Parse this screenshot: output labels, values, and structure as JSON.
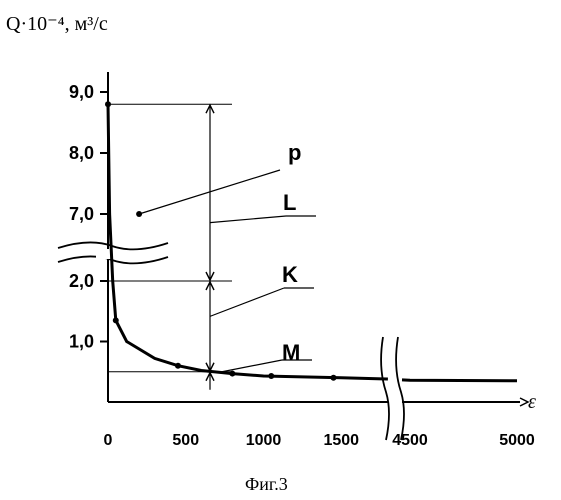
{
  "chart_data": {
    "type": "line",
    "title": "",
    "ylabel": "Q·10⁻⁴, м³/с",
    "xlabel": "ε",
    "caption": "Фиг.3",
    "y_tick_labels": [
      "9,0",
      "8,0",
      "7,0",
      "2,0",
      "1,0"
    ],
    "x_tick_labels": [
      "0",
      "500",
      "1000",
      "1500",
      "4500",
      "5000"
    ],
    "y_axis_break_between": [
      2.0,
      7.0
    ],
    "x_axis_break_between": [
      1500,
      4500
    ],
    "series": [
      {
        "values": [
          {
            "x": 0,
            "y": 8.8
          },
          {
            "x": 10,
            "y": 7.0
          },
          {
            "x": 30,
            "y": 2.0
          },
          {
            "x": 50,
            "y": 1.35
          },
          {
            "x": 120,
            "y": 1.0
          },
          {
            "x": 300,
            "y": 0.72
          },
          {
            "x": 450,
            "y": 0.6
          },
          {
            "x": 600,
            "y": 0.52
          },
          {
            "x": 800,
            "y": 0.47
          },
          {
            "x": 1000,
            "y": 0.43
          },
          {
            "x": 1500,
            "y": 0.4
          },
          {
            "x": 1800,
            "y": 0.38
          },
          {
            "x": 4500,
            "y": 0.36
          },
          {
            "x": 5000,
            "y": 0.35
          }
        ]
      }
    ],
    "markers": [
      {
        "x": 0,
        "y": 8.8
      },
      {
        "x": 200,
        "y": 7.0
      },
      {
        "x": 50,
        "y": 1.35
      },
      {
        "x": 450,
        "y": 0.6
      },
      {
        "x": 800,
        "y": 0.47
      },
      {
        "x": 1050,
        "y": 0.43
      },
      {
        "x": 1450,
        "y": 0.4
      }
    ],
    "reference_levels": [
      8.8,
      2.0,
      0.5
    ],
    "annotations": [
      {
        "label": "p",
        "x": 200,
        "y": 7.0
      },
      {
        "label": "L",
        "span": [
          2.0,
          8.8
        ]
      },
      {
        "label": "K",
        "span": [
          0.5,
          2.0
        ]
      },
      {
        "label": "M",
        "x": 700,
        "y": 0.5
      }
    ]
  }
}
